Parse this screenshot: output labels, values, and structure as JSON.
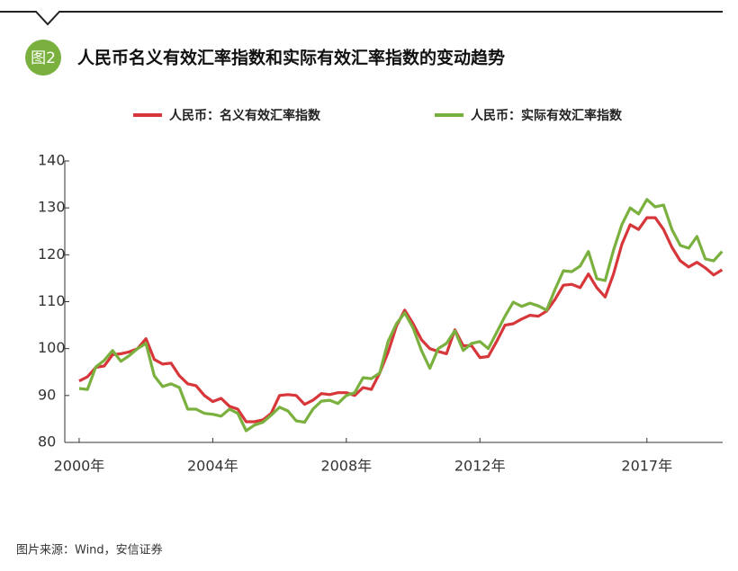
{
  "badge": "图2",
  "source": "图片来源：Wind，安信证券",
  "chart_data": {
    "type": "line",
    "title": "人民币名义有效汇率指数和实际有效汇率指数的变动趋势",
    "x": [
      2000,
      2000.25,
      2000.5,
      2000.75,
      2001,
      2001.25,
      2001.5,
      2001.75,
      2002,
      2002.25,
      2002.5,
      2002.75,
      2003,
      2003.25,
      2003.5,
      2003.75,
      2004,
      2004.25,
      2004.5,
      2004.75,
      2005,
      2005.25,
      2005.5,
      2005.75,
      2006,
      2006.25,
      2006.5,
      2006.75,
      2007,
      2007.25,
      2007.5,
      2007.75,
      2008,
      2008.25,
      2008.5,
      2008.75,
      2009,
      2009.25,
      2009.5,
      2009.75,
      2010,
      2010.25,
      2010.5,
      2010.75,
      2011,
      2011.25,
      2011.5,
      2011.75,
      2012,
      2012.25,
      2012.5,
      2012.75,
      2013,
      2013.25,
      2013.5,
      2013.75,
      2014,
      2014.25,
      2014.5,
      2014.75,
      2015,
      2015.25,
      2015.5,
      2015.75,
      2016,
      2016.25,
      2016.5,
      2016.75,
      2017,
      2017.25,
      2017.5,
      2017.75,
      2018,
      2018.25,
      2018.5,
      2018.75,
      2019,
      2019.25
    ],
    "series": [
      {
        "name": "人民币：名义有效汇率指数",
        "color": "#d7373a",
        "values": [
          93.1,
          94.0,
          96.0,
          96.3,
          98.7,
          98.9,
          99.3,
          100.0,
          102.1,
          97.7,
          96.7,
          96.9,
          94.2,
          92.5,
          92.1,
          90.0,
          88.7,
          89.4,
          87.7,
          87.1,
          84.4,
          84.4,
          84.8,
          86.2,
          90.0,
          90.2,
          90.0,
          88.1,
          89.0,
          90.4,
          90.2,
          90.6,
          90.6,
          90.0,
          91.7,
          91.3,
          94.8,
          99.2,
          104.8,
          108.2,
          105.3,
          101.9,
          100.0,
          99.4,
          98.9,
          104.0,
          100.6,
          100.6,
          98.1,
          98.3,
          101.5,
          105.0,
          105.3,
          106.3,
          107.1,
          106.9,
          108.0,
          110.5,
          113.5,
          113.7,
          113.0,
          115.9,
          113.0,
          111.0,
          115.9,
          122.2,
          126.4,
          125.4,
          127.9,
          127.9,
          125.4,
          121.6,
          118.7,
          117.4,
          118.4,
          117.2,
          115.7,
          116.8
        ]
      },
      {
        "name": "人民币：实际有效汇率指数",
        "color": "#7ab03d",
        "values": [
          91.5,
          91.3,
          96.1,
          97.5,
          99.6,
          97.3,
          98.5,
          100.0,
          101.1,
          94.2,
          91.9,
          92.5,
          91.7,
          87.1,
          87.1,
          86.2,
          86.0,
          85.6,
          87.1,
          86.2,
          82.5,
          83.7,
          84.3,
          85.8,
          87.5,
          86.7,
          84.6,
          84.3,
          87.1,
          88.8,
          89.0,
          88.3,
          90.0,
          90.6,
          93.8,
          93.6,
          94.8,
          101.5,
          105.3,
          107.6,
          104.4,
          99.6,
          95.8,
          100.0,
          101.1,
          103.8,
          99.6,
          101.1,
          101.5,
          100.0,
          103.4,
          106.9,
          109.9,
          109.0,
          109.7,
          109.1,
          108.2,
          112.6,
          116.6,
          116.4,
          117.6,
          120.7,
          114.9,
          114.5,
          121.0,
          126.4,
          130.0,
          128.7,
          131.8,
          130.2,
          130.6,
          125.4,
          122.0,
          121.4,
          123.9,
          119.1,
          118.7,
          120.7
        ]
      }
    ],
    "xlim": [
      1999.57,
      2019.27
    ],
    "xticks": [
      {
        "value": 2000,
        "label": "2000年"
      },
      {
        "value": 2004,
        "label": "2004年"
      },
      {
        "value": 2008,
        "label": "2008年"
      },
      {
        "value": 2012,
        "label": "2012年"
      },
      {
        "value": 2017,
        "label": "2017年"
      }
    ],
    "ylim": [
      80,
      140
    ],
    "yticks": [
      80,
      90,
      100,
      110,
      120,
      130,
      140
    ]
  }
}
